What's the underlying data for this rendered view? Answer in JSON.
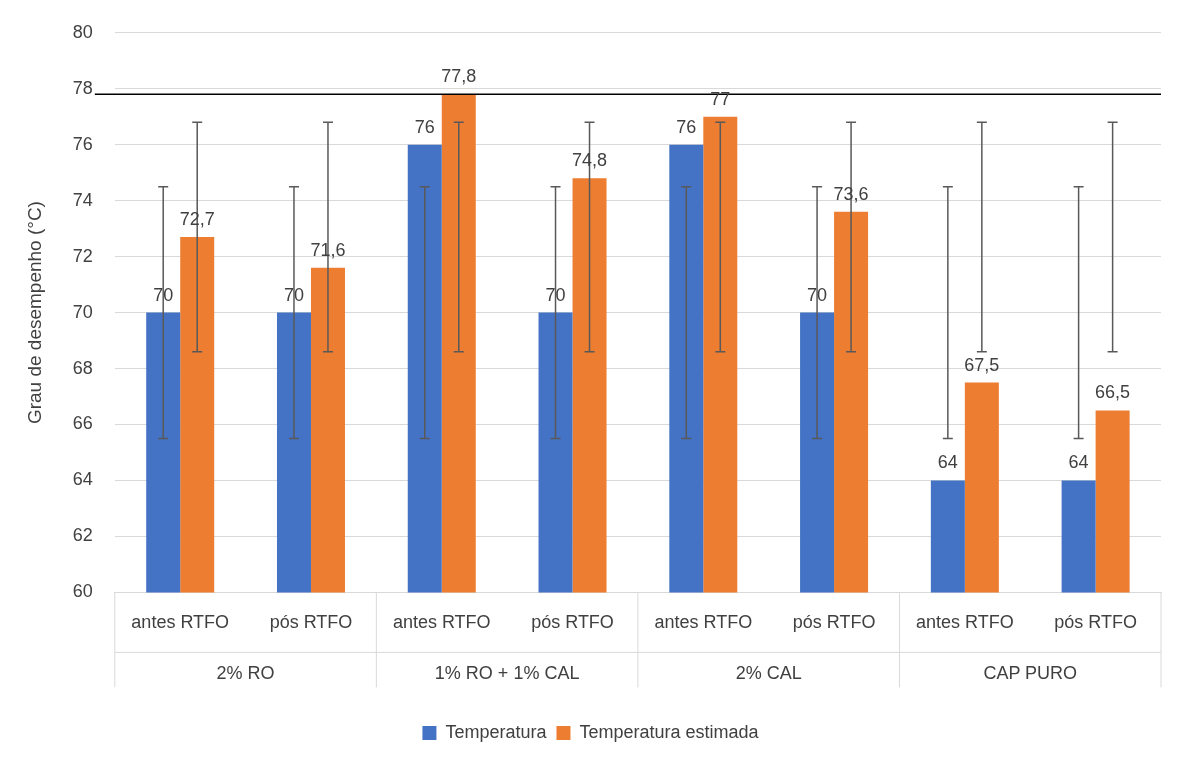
{
  "chart_data": {
    "type": "bar",
    "ylabel": "Grau de desempenho (°C)",
    "categories": [
      "antes RTFO",
      "pós RTFO",
      "antes RTFO",
      "pós RTFO",
      "antes RTFO",
      "pós RTFO",
      "antes RTFO",
      "pós RTFO"
    ],
    "annotations": [
      "2% RO",
      "1% RO + 1% CAL",
      "2% CAL",
      "CAP PURO"
    ],
    "series": [
      {
        "name": "Temperatura",
        "color": "#4472c4",
        "values": [
          70,
          70,
          76,
          70,
          76,
          70,
          64,
          64
        ],
        "value_labels": [
          "70",
          "70",
          "76",
          "70",
          "76",
          "70",
          "64",
          "64"
        ],
        "errors": [
          [
            65.5,
            74.5
          ],
          [
            65.5,
            74.5
          ],
          [
            65.5,
            74.5
          ],
          [
            65.5,
            74.5
          ],
          [
            65.5,
            74.5
          ],
          [
            65.5,
            74.5
          ],
          [
            65.5,
            74.5
          ],
          [
            65.5,
            74.5
          ]
        ]
      },
      {
        "name": "Temperatura estimada",
        "color": "#ed7d31",
        "values": [
          72.7,
          71.6,
          77.8,
          74.8,
          77,
          73.6,
          67.5,
          66.5
        ],
        "value_labels": [
          "72,7",
          "71,6",
          "77,8",
          "74,8",
          "77",
          "73,6",
          "67,5",
          "66,5"
        ],
        "errors": [
          [
            68.6,
            76.8
          ],
          [
            68.6,
            76.8
          ],
          [
            68.6,
            76.8
          ],
          [
            68.6,
            76.8
          ],
          [
            68.6,
            76.8
          ],
          [
            68.6,
            76.8
          ],
          [
            68.6,
            76.8
          ],
          [
            68.6,
            76.8
          ]
        ]
      }
    ],
    "ylim": [
      60,
      80
    ],
    "yticks": [
      60,
      62,
      64,
      66,
      68,
      70,
      72,
      74,
      76,
      78,
      80
    ],
    "ref_lines": [
      {
        "axis": "y",
        "value": 77.8,
        "color": "#000000"
      }
    ],
    "grid": "y",
    "legend": "bottom"
  }
}
